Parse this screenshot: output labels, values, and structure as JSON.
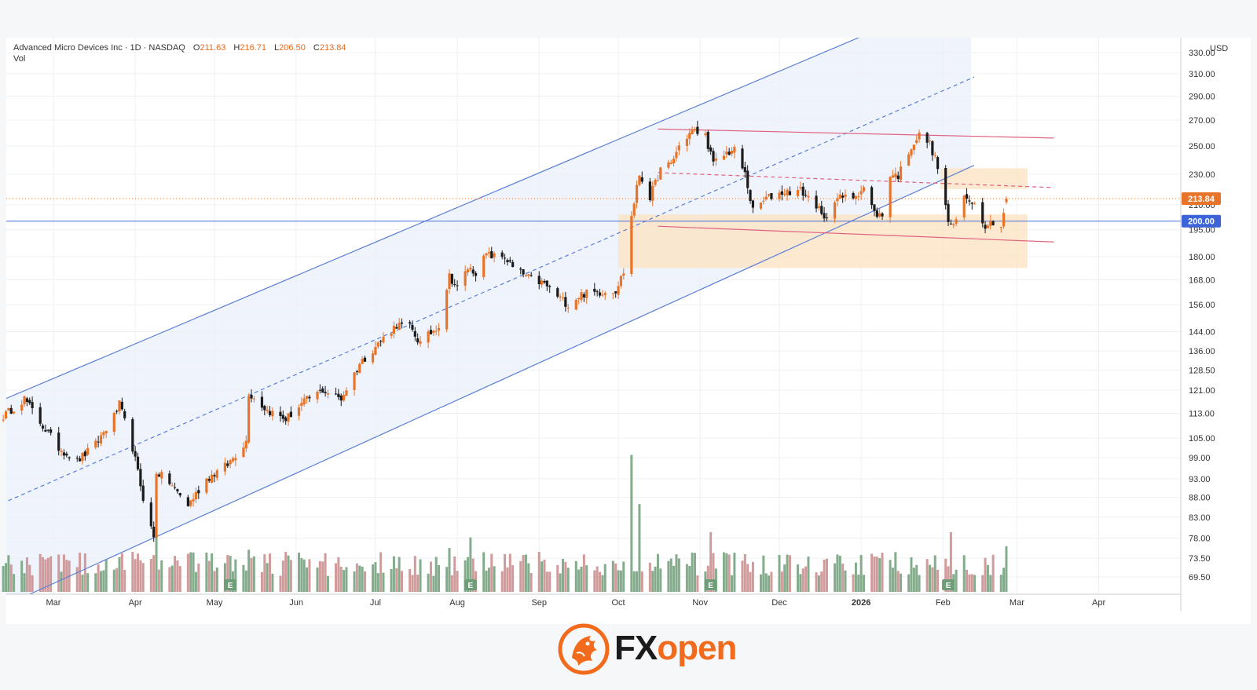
{
  "header": {
    "symbol": "Advanced Micro Devices Inc · 1D · NASDAQ",
    "open_label": "O",
    "open": "211.63",
    "high_label": "H",
    "high": "216.71",
    "low_label": "L",
    "low": "206.50",
    "close_label": "C",
    "close": "213.84",
    "volume_label": "Vol"
  },
  "currency": "USD",
  "price_tags": {
    "last": "213.84",
    "level": "200.00"
  },
  "logo": {
    "part1": "FX",
    "part2": "open"
  },
  "colors": {
    "up": "#e8742a",
    "down": "#1b1b1b",
    "vol_up": "#6e9e78",
    "vol_down": "#c98a8a",
    "channel": "#5b7fd6",
    "channel_fill": "#eef3fc",
    "red_line": "#e06080",
    "zone": "#fbe3c4",
    "accent": "#f26a1b"
  },
  "chart_data": {
    "type": "candlestick",
    "y_scale": "log",
    "ylim": [
      66,
      345
    ],
    "y_ticks": [
      "330.00",
      "310.00",
      "290.00",
      "270.00",
      "250.00",
      "230.00",
      "210.00",
      "195.00",
      "180.00",
      "168.00",
      "156.00",
      "144.00",
      "136.00",
      "128.50",
      "121.00",
      "113.00",
      "105.00",
      "99.00",
      "93.00",
      "88.00",
      "83.00",
      "78.00",
      "73.50",
      "69.50"
    ],
    "x_ticks": [
      {
        "label": "Mar",
        "date": "2025-03-01"
      },
      {
        "label": "Apr",
        "date": "2025-04-01"
      },
      {
        "label": "May",
        "date": "2025-05-01"
      },
      {
        "label": "Jun",
        "date": "2025-06-01"
      },
      {
        "label": "Jul",
        "date": "2025-07-01"
      },
      {
        "label": "Aug",
        "date": "2025-08-01"
      },
      {
        "label": "Sep",
        "date": "2025-09-01"
      },
      {
        "label": "Oct",
        "date": "2025-10-01"
      },
      {
        "label": "Nov",
        "date": "2025-11-01"
      },
      {
        "label": "Dec",
        "date": "2025-12-01"
      },
      {
        "label": "2026",
        "date": "2026-01-01"
      },
      {
        "label": "Feb",
        "date": "2026-02-01"
      },
      {
        "label": "Mar",
        "date": "2026-03-01"
      },
      {
        "label": "Apr",
        "date": "2026-04-01"
      }
    ],
    "earnings_markers": [
      {
        "label": "E",
        "date": "2025-05-07"
      },
      {
        "label": "E",
        "date": "2025-08-06"
      },
      {
        "label": "E",
        "date": "2025-11-05"
      },
      {
        "label": "E",
        "date": "2026-02-03"
      }
    ],
    "waypoints": [
      [
        "2025-02-10",
        112
      ],
      [
        "2025-02-18",
        118
      ],
      [
        "2025-02-24",
        110
      ],
      [
        "2025-03-03",
        102
      ],
      [
        "2025-03-10",
        98
      ],
      [
        "2025-03-17",
        103
      ],
      [
        "2025-03-24",
        112
      ],
      [
        "2025-03-26",
        116
      ],
      [
        "2025-03-31",
        102
      ],
      [
        "2025-04-04",
        88
      ],
      [
        "2025-04-08",
        78
      ],
      [
        "2025-04-09",
        95
      ],
      [
        "2025-04-14",
        92
      ],
      [
        "2025-04-21",
        86
      ],
      [
        "2025-04-28",
        93
      ],
      [
        "2025-05-06",
        97
      ],
      [
        "2025-05-13",
        104
      ],
      [
        "2025-05-14",
        120
      ],
      [
        "2025-05-21",
        114
      ],
      [
        "2025-05-28",
        111
      ],
      [
        "2025-06-04",
        117
      ],
      [
        "2025-06-11",
        121
      ],
      [
        "2025-06-18",
        118
      ],
      [
        "2025-06-25",
        131
      ],
      [
        "2025-07-02",
        139
      ],
      [
        "2025-07-09",
        147
      ],
      [
        "2025-07-14",
        146
      ],
      [
        "2025-07-18",
        139
      ],
      [
        "2025-07-25",
        147
      ],
      [
        "2025-07-29",
        170
      ],
      [
        "2025-08-01",
        164
      ],
      [
        "2025-08-05",
        174
      ],
      [
        "2025-08-08",
        172
      ],
      [
        "2025-08-12",
        181
      ],
      [
        "2025-08-15",
        180
      ],
      [
        "2025-08-19",
        180
      ],
      [
        "2025-08-22",
        174
      ],
      [
        "2025-08-28",
        169
      ],
      [
        "2025-09-03",
        166
      ],
      [
        "2025-09-08",
        160
      ],
      [
        "2025-09-12",
        156
      ],
      [
        "2025-09-17",
        161
      ],
      [
        "2025-09-24",
        162
      ],
      [
        "2025-09-30",
        163
      ],
      [
        "2025-10-03",
        172
      ],
      [
        "2025-10-06",
        203
      ],
      [
        "2025-10-09",
        230
      ],
      [
        "2025-10-13",
        215
      ],
      [
        "2025-10-17",
        233
      ],
      [
        "2025-10-21",
        237
      ],
      [
        "2025-10-24",
        250
      ],
      [
        "2025-10-29",
        262
      ],
      [
        "2025-11-03",
        258
      ],
      [
        "2025-11-06",
        237
      ],
      [
        "2025-11-11",
        245
      ],
      [
        "2025-11-14",
        247
      ],
      [
        "2025-11-18",
        230
      ],
      [
        "2025-11-21",
        206
      ],
      [
        "2025-11-26",
        214
      ],
      [
        "2025-12-02",
        218
      ],
      [
        "2025-12-09",
        219
      ],
      [
        "2025-12-15",
        210
      ],
      [
        "2025-12-18",
        200
      ],
      [
        "2025-12-22",
        214
      ],
      [
        "2025-12-29",
        215
      ],
      [
        "2026-01-02",
        221
      ],
      [
        "2026-01-06",
        205
      ],
      [
        "2026-01-09",
        203
      ],
      [
        "2026-01-12",
        230
      ],
      [
        "2026-01-15",
        229
      ],
      [
        "2026-01-20",
        250
      ],
      [
        "2026-01-23",
        258
      ],
      [
        "2026-01-27",
        252
      ],
      [
        "2026-01-30",
        235
      ],
      [
        "2026-02-03",
        200
      ],
      [
        "2026-02-05",
        196
      ],
      [
        "2026-02-09",
        215
      ],
      [
        "2026-02-12",
        213
      ],
      [
        "2026-02-17",
        198
      ],
      [
        "2026-02-20",
        200
      ],
      [
        "2026-02-23",
        197
      ],
      [
        "2026-02-25",
        213.84
      ]
    ],
    "volume_peaks": [
      {
        "date": "2025-04-09",
        "value": 3.2
      },
      {
        "date": "2025-05-14",
        "value": 2.4
      },
      {
        "date": "2025-07-29",
        "value": 2.5
      },
      {
        "date": "2025-08-06",
        "value": 3.1
      },
      {
        "date": "2025-10-06",
        "value": 7.8
      },
      {
        "date": "2025-10-09",
        "value": 5.0
      },
      {
        "date": "2025-11-05",
        "value": 3.4
      },
      {
        "date": "2026-02-04",
        "value": 3.4
      },
      {
        "date": "2026-02-25",
        "value": 2.6
      }
    ],
    "horizontal_level": 200,
    "channel": {
      "lower": [
        [
          "2025-02-20",
          66
        ],
        [
          "2025-12-31",
          202
        ]
      ],
      "upper": [
        [
          "2025-02-07",
          116.5
        ],
        [
          "2025-12-31",
          345
        ]
      ]
    },
    "red_channel": {
      "upper": [
        [
          "2025-10-16",
          263
        ],
        [
          "2026-03-15",
          256
        ]
      ],
      "mid": [
        [
          "2025-10-16",
          231
        ],
        [
          "2026-03-15",
          221
        ]
      ],
      "lower": [
        [
          "2025-10-16",
          197
        ],
        [
          "2026-03-15",
          188
        ]
      ]
    },
    "zones": [
      {
        "from": "2025-10-01",
        "to": "2026-03-05",
        "top": 204,
        "bottom": 174
      },
      {
        "from": "2026-01-31",
        "to": "2026-03-05",
        "top": 234,
        "bottom": 220
      }
    ]
  }
}
